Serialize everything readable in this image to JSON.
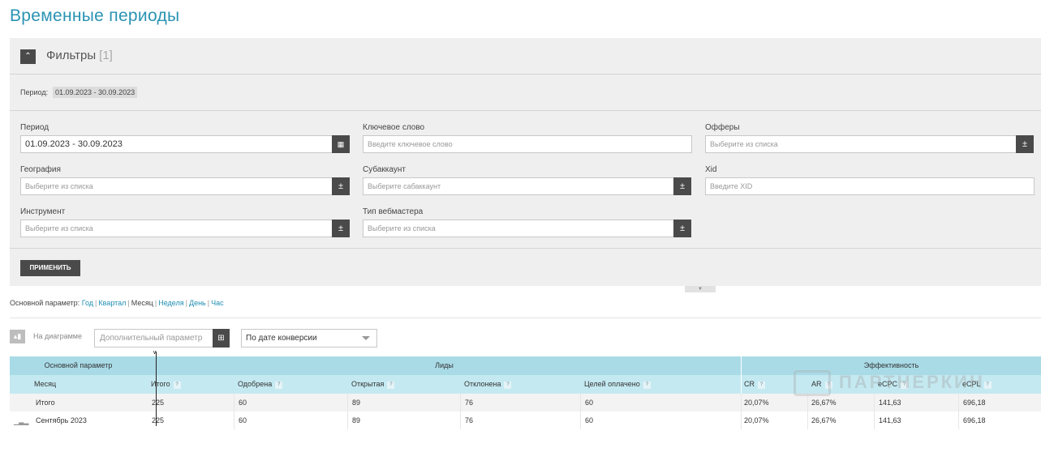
{
  "page_title": "Временные периоды",
  "filters": {
    "title": "Фильтры",
    "count": "[1]",
    "summary_label": "Период:",
    "summary_value": "01.09.2023 - 30.09.2023",
    "period_label": "Период",
    "period_value": "01.09.2023 - 30.09.2023",
    "keyword_label": "Ключевое слово",
    "keyword_placeholder": "Введите ключевое слово",
    "offers_label": "Офферы",
    "offers_placeholder": "Выберите из списка",
    "geo_label": "География",
    "geo_placeholder": "Выберите из списка",
    "subaccount_label": "Субаккаунт",
    "subaccount_placeholder": "Выберите сабаккаунт",
    "xid_label": "Xid",
    "xid_placeholder": "Введите XID",
    "tool_label": "Инструмент",
    "tool_placeholder": "Выберите из списка",
    "webmaster_label": "Тип вебмастера",
    "webmaster_placeholder": "Выберите из списка",
    "pm_symbol": "±",
    "apply_label": "ПРИМЕНИТЬ"
  },
  "base_param": {
    "label": "Основной параметр:",
    "options": [
      "Год",
      "Квартал",
      "Месяц",
      "Неделя",
      "День",
      "Час"
    ],
    "selected": "Месяц"
  },
  "chart_controls": {
    "on_chart_label": "На диаграмме",
    "extra_param_placeholder": "Дополнительный параметр",
    "conversion_select": "По дате конверсии"
  },
  "table": {
    "group_headers": {
      "base": "Основной параметр",
      "leads": "Лиды",
      "efficiency": "Эффективность"
    },
    "columns": [
      "Месяц",
      "Итого",
      "Одобрена",
      "Открытая",
      "Отклонена",
      "Целей оплачено",
      "CR",
      "AR",
      "eCPC",
      "eCPL"
    ],
    "help_mark": "?",
    "total_row": [
      "Итого",
      "225",
      "60",
      "89",
      "76",
      "60",
      "20,07%",
      "26,67%",
      "141,63",
      "696,18"
    ],
    "rows": [
      [
        "Сентябрь 2023",
        "225",
        "60",
        "89",
        "76",
        "60",
        "20,07%",
        "26,67%",
        "141,63",
        "696,18"
      ]
    ]
  },
  "watermark": "ПАРТНЕРКИН"
}
